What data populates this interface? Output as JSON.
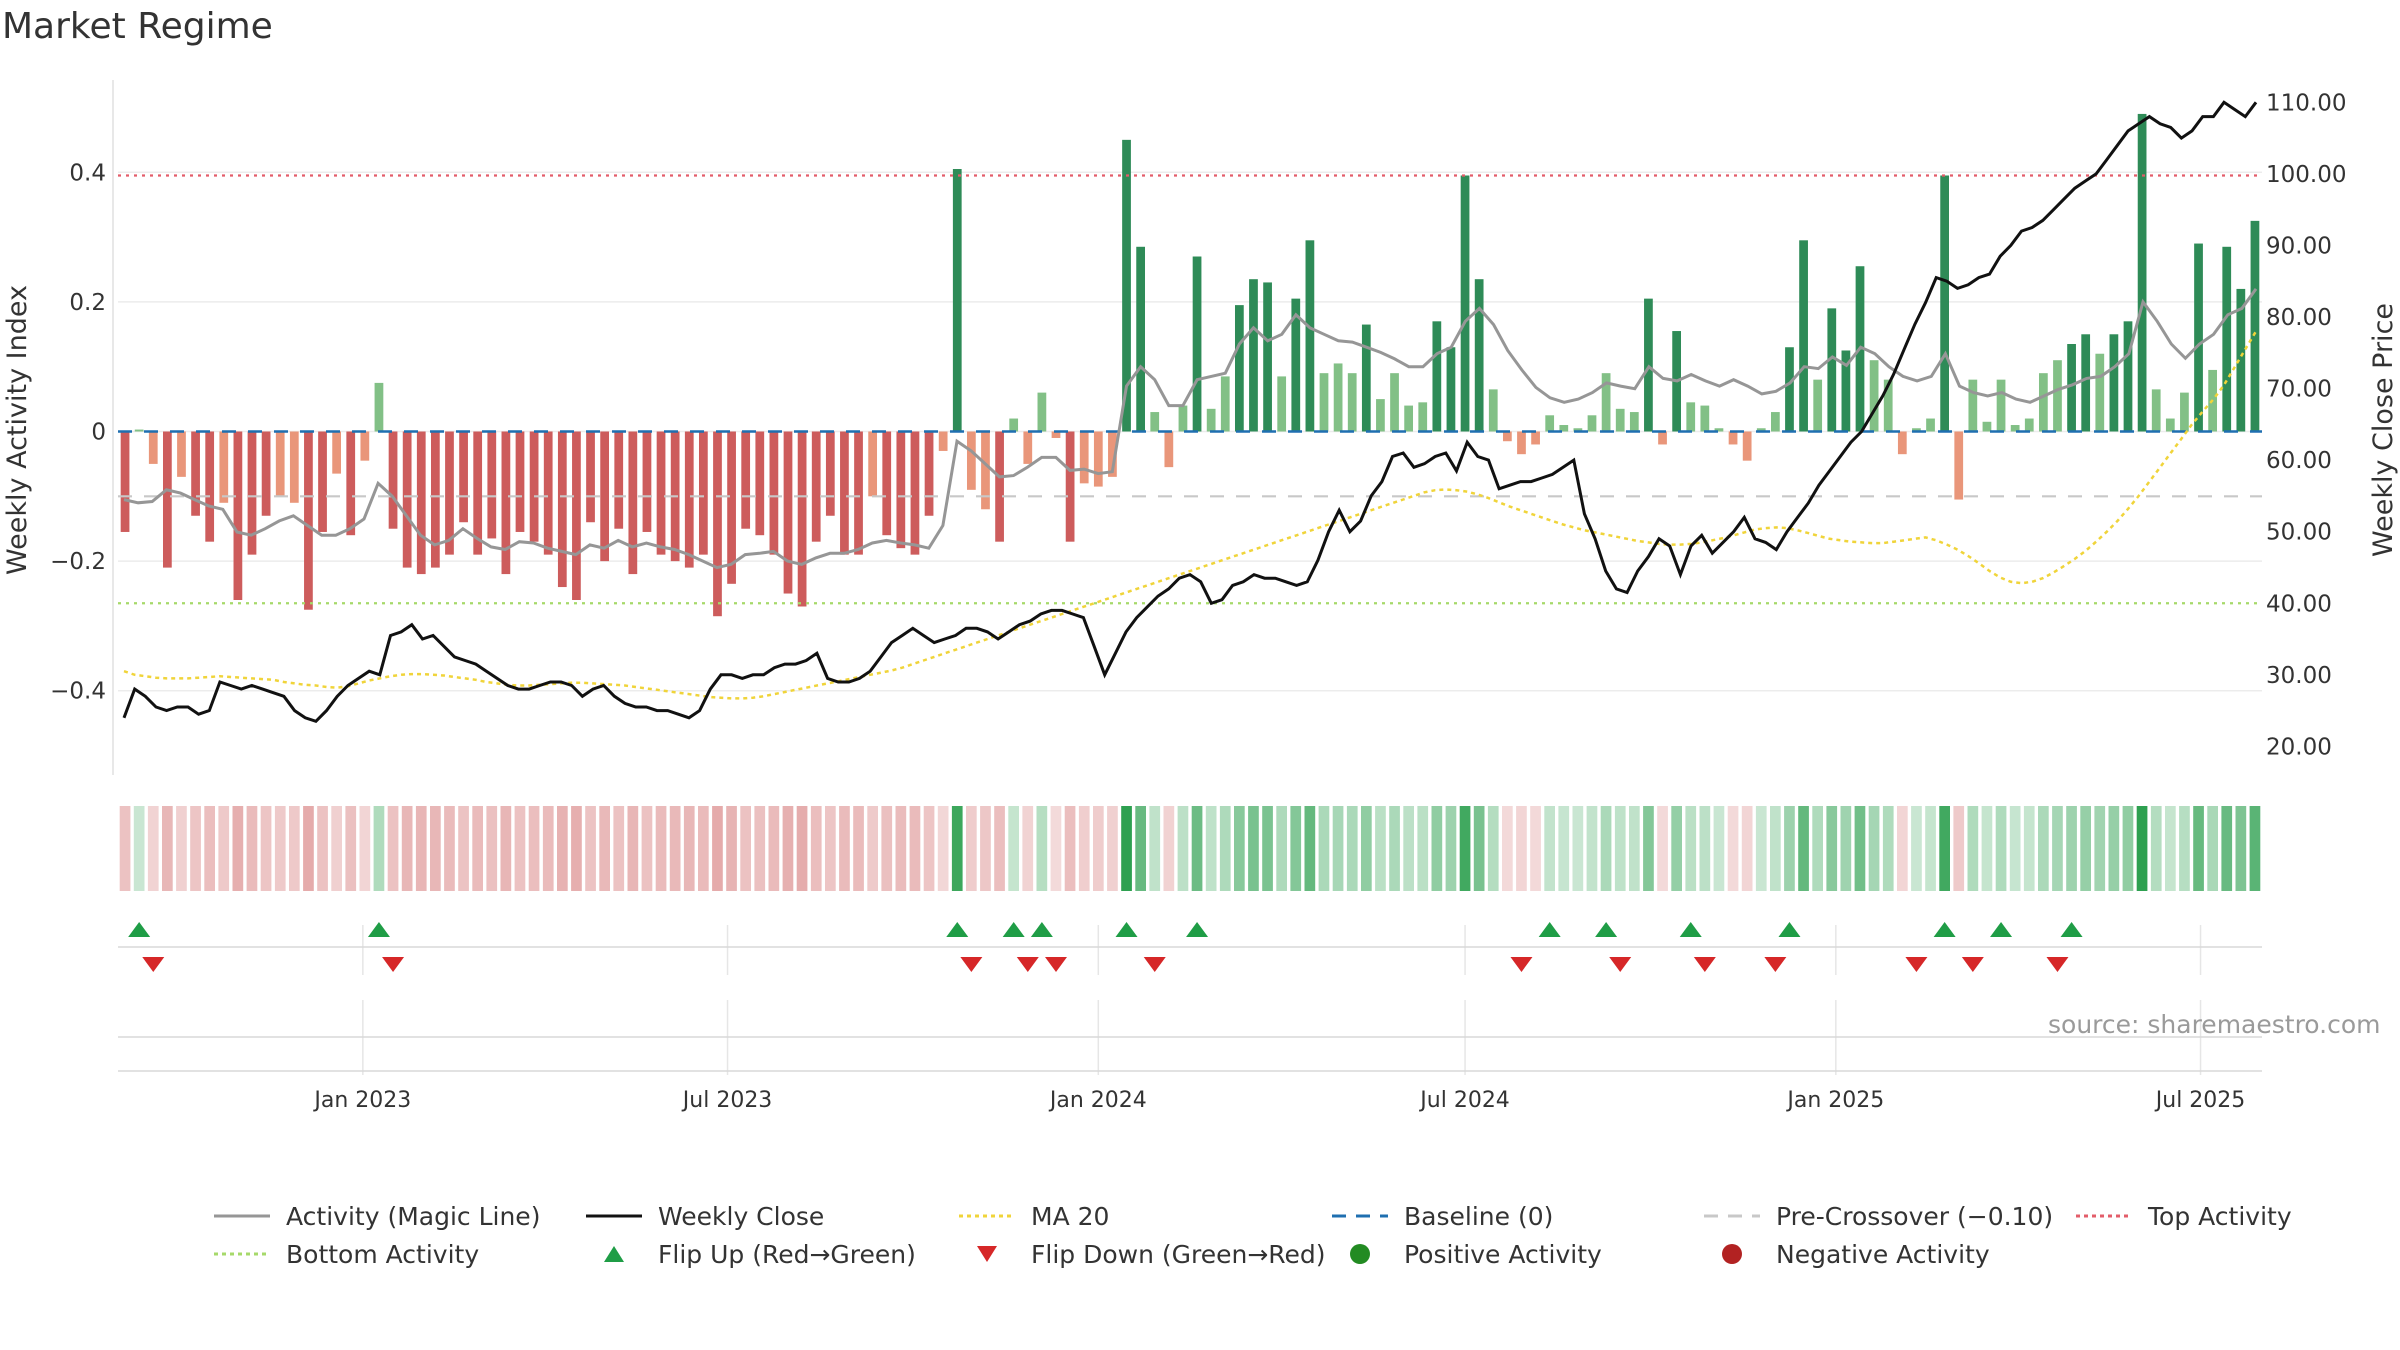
{
  "page": {
    "title": "Market Regime",
    "source": "source: sharemaestro.com"
  },
  "colors": {
    "pos_dark": "#2e8b57",
    "pos_light": "#82c086",
    "neg_dark": "#cd5c5c",
    "neg_light": "#e9967a",
    "close": "#111111",
    "activity": "#969696",
    "ma": "#f0d43a",
    "baseline": "#1f6fb0",
    "pre": "#c8c8c8",
    "top": "#e35d6a",
    "bottom": "#a6d96a",
    "flip_up": "#1f9d46",
    "flip_down": "#d62728"
  },
  "chart_data": {
    "type": "bar",
    "title": "Market Regime",
    "ylabel": "Weekly Activity Index",
    "y2label": "Weekly Close Price",
    "ylim": [
      -0.53,
      0.53
    ],
    "y2lim": [
      16.0,
      112.0
    ],
    "yticks": [
      {
        "v": 0.4,
        "label": "0.4"
      },
      {
        "v": 0.2,
        "label": "0.2"
      },
      {
        "v": 0,
        "label": "0"
      },
      {
        "v": -0.2,
        "label": "−0.2"
      },
      {
        "v": -0.4,
        "label": "−0.4"
      }
    ],
    "y2ticks": [
      "110.00",
      "100.00",
      "90.00",
      "80.00",
      "70.00",
      "60.00",
      "50.00",
      "40.00",
      "30.00",
      "20.00"
    ],
    "x_start": "2022-09-05",
    "xlabels": [
      "Jan 2023",
      "Jul 2023",
      "Jan 2024",
      "Jul 2024",
      "Jan 2025",
      "Jul 2025"
    ],
    "top_activity": 0.395,
    "bottom_activity": -0.265,
    "pre_crossover": -0.1,
    "baseline": 0,
    "grid": true,
    "legend_position": "bottom",
    "legend": [
      {
        "label": "Activity (Magic Line)",
        "symbol": "line",
        "color": "#969696"
      },
      {
        "label": "Weekly Close",
        "symbol": "line",
        "color": "#111111"
      },
      {
        "label": "MA 20",
        "symbol": "dotted",
        "color": "#f0d43a"
      },
      {
        "label": "Baseline (0)",
        "symbol": "dashed",
        "color": "#1f6fb0"
      },
      {
        "label": "Pre-Crossover (−0.10)",
        "symbol": "dashed",
        "color": "#c8c8c8"
      },
      {
        "label": "Top Activity",
        "symbol": "dotted",
        "color": "#e35d6a"
      },
      {
        "label": "Bottom Activity",
        "symbol": "dotted",
        "color": "#a6d96a"
      },
      {
        "label": "Flip Up (Red→Green)",
        "symbol": "triangle-up",
        "color": "#1f9d46"
      },
      {
        "label": "Flip Down (Green→Red)",
        "symbol": "triangle-down",
        "color": "#d62728"
      },
      {
        "label": "Positive Activity",
        "symbol": "circle",
        "color": "#228b22"
      },
      {
        "label": "Negative Activity",
        "symbol": "circle",
        "color": "#b22222"
      }
    ],
    "activity_bars": [
      -0.155,
      0.003,
      -0.05,
      -0.21,
      -0.07,
      -0.13,
      -0.17,
      -0.11,
      -0.26,
      -0.19,
      -0.13,
      -0.1,
      -0.11,
      -0.275,
      -0.155,
      -0.065,
      -0.16,
      -0.045,
      0.075,
      -0.15,
      -0.21,
      -0.22,
      -0.21,
      -0.19,
      -0.14,
      -0.19,
      -0.165,
      -0.22,
      -0.155,
      -0.17,
      -0.19,
      -0.24,
      -0.26,
      -0.14,
      -0.2,
      -0.15,
      -0.22,
      -0.155,
      -0.19,
      -0.2,
      -0.21,
      -0.19,
      -0.285,
      -0.235,
      -0.15,
      -0.16,
      -0.19,
      -0.25,
      -0.27,
      -0.17,
      -0.13,
      -0.19,
      -0.19,
      -0.1,
      -0.16,
      -0.18,
      -0.19,
      -0.13,
      -0.03,
      0.405,
      -0.09,
      -0.12,
      -0.17,
      0.02,
      -0.05,
      0.06,
      -0.01,
      -0.17,
      -0.08,
      -0.085,
      -0.07,
      0.45,
      0.285,
      0.03,
      -0.055,
      0.04,
      0.27,
      0.035,
      0.085,
      0.195,
      0.235,
      0.23,
      0.085,
      0.205,
      0.295,
      0.09,
      0.105,
      0.09,
      0.165,
      0.05,
      0.09,
      0.04,
      0.045,
      0.17,
      0.13,
      0.395,
      0.235,
      0.065,
      -0.015,
      -0.035,
      -0.02,
      0.025,
      0.01,
      0.005,
      0.025,
      0.09,
      0.035,
      0.03,
      0.205,
      -0.02,
      0.155,
      0.045,
      0.04,
      0.005,
      -0.02,
      -0.045,
      0.005,
      0.03,
      0.13,
      0.295,
      0.08,
      0.19,
      0.125,
      0.255,
      0.11,
      0.08,
      -0.035,
      0.005,
      0.02,
      0.395,
      -0.105,
      0.08,
      0.015,
      0.08,
      0.01,
      0.02,
      0.09,
      0.11,
      0.135,
      0.15,
      0.12,
      0.15,
      0.17,
      0.49,
      0.065,
      0.02,
      0.06,
      0.29,
      0.095,
      0.285,
      0.22,
      0.325
    ],
    "activity_line": [
      -0.105,
      -0.11,
      -0.108,
      -0.09,
      -0.095,
      -0.105,
      -0.115,
      -0.12,
      -0.155,
      -0.16,
      -0.15,
      -0.138,
      -0.13,
      -0.145,
      -0.16,
      -0.16,
      -0.15,
      -0.135,
      -0.08,
      -0.1,
      -0.13,
      -0.16,
      -0.175,
      -0.168,
      -0.15,
      -0.165,
      -0.178,
      -0.182,
      -0.17,
      -0.172,
      -0.18,
      -0.185,
      -0.19,
      -0.175,
      -0.18,
      -0.168,
      -0.178,
      -0.172,
      -0.178,
      -0.182,
      -0.19,
      -0.2,
      -0.21,
      -0.205,
      -0.19,
      -0.188,
      -0.185,
      -0.2,
      -0.205,
      -0.195,
      -0.188,
      -0.188,
      -0.182,
      -0.172,
      -0.168,
      -0.172,
      -0.175,
      -0.18,
      -0.145,
      -0.015,
      -0.03,
      -0.05,
      -0.07,
      -0.068,
      -0.055,
      -0.04,
      -0.04,
      -0.06,
      -0.058,
      -0.065,
      -0.062,
      0.07,
      0.1,
      0.08,
      0.04,
      0.04,
      0.08,
      0.085,
      0.09,
      0.135,
      0.16,
      0.14,
      0.15,
      0.18,
      0.16,
      0.15,
      0.14,
      0.138,
      0.13,
      0.122,
      0.112,
      0.1,
      0.1,
      0.12,
      0.13,
      0.17,
      0.19,
      0.165,
      0.125,
      0.095,
      0.068,
      0.052,
      0.045,
      0.05,
      0.06,
      0.075,
      0.07,
      0.066,
      0.1,
      0.082,
      0.078,
      0.088,
      0.078,
      0.07,
      0.08,
      0.07,
      0.058,
      0.062,
      0.075,
      0.1,
      0.097,
      0.115,
      0.102,
      0.13,
      0.12,
      0.1,
      0.085,
      0.078,
      0.085,
      0.12,
      0.07,
      0.06,
      0.055,
      0.06,
      0.05,
      0.045,
      0.055,
      0.065,
      0.072,
      0.082,
      0.085,
      0.1,
      0.12,
      0.2,
      0.17,
      0.135,
      0.113,
      0.135,
      0.15,
      0.18,
      0.19,
      0.22
    ],
    "weekly_close": [
      24.0,
      28.0,
      27.0,
      25.5,
      25.0,
      25.5,
      25.5,
      24.5,
      25.0,
      29.0,
      28.5,
      28.0,
      28.5,
      28.0,
      27.5,
      27.0,
      25.0,
      24.0,
      23.5,
      25.0,
      27.0,
      28.5,
      29.5,
      30.5,
      30.0,
      35.5,
      36.0,
      37.0,
      35.0,
      35.5,
      34.0,
      32.5,
      32.0,
      31.5,
      30.5,
      29.5,
      28.5,
      28.0,
      28.0,
      28.5,
      29.0,
      29.0,
      28.5,
      27.0,
      28.0,
      28.5,
      27.0,
      26.0,
      25.5,
      25.5,
      25.0,
      25.0,
      24.5,
      24.0,
      25.0,
      28.0,
      30.0,
      30.0,
      29.5,
      30.0,
      30.0,
      31.0,
      31.5,
      31.5,
      32.0,
      33.0,
      29.5,
      29.0,
      29.0,
      29.5,
      30.5,
      32.5,
      34.5,
      35.5,
      36.5,
      35.5,
      34.5,
      35.0,
      35.5,
      36.5,
      36.5,
      36.0,
      35.0,
      36.0,
      37.0,
      37.5,
      38.5,
      39.0,
      39.0,
      38.5,
      38.0,
      34.0,
      30.0,
      33.0,
      36.0,
      38.0,
      39.5,
      41.0,
      42.0,
      43.5,
      44.0,
      43.0,
      40.0,
      40.5,
      42.5,
      43.0,
      44.0,
      43.5,
      43.5,
      43.0,
      42.5,
      43.0,
      46.0,
      50.0,
      53.0,
      50.0,
      51.5,
      55.0,
      57.0,
      60.5,
      61.0,
      59.0,
      59.5,
      60.5,
      61.0,
      58.5,
      62.5,
      60.5,
      60.0,
      56.0,
      56.5,
      57.0,
      57.0,
      57.5,
      58.0,
      59.0,
      60.0,
      52.5,
      49.0,
      44.5,
      42.0,
      41.5,
      44.5,
      46.5,
      49.0,
      48.0,
      44.0,
      48.0,
      49.5,
      47.0,
      48.5,
      50.0,
      52.0,
      49.0,
      48.5,
      47.5,
      50.0,
      52.0,
      54.0,
      56.5,
      58.5,
      60.5,
      62.5,
      64.0,
      66.5,
      69.0,
      72.0,
      75.5,
      79.0,
      82.0,
      85.5,
      85.0,
      84.0,
      84.5,
      85.5,
      86.0,
      88.5,
      90.0,
      92.0,
      92.5,
      93.5,
      95.0,
      96.5,
      98.0,
      99.0,
      100.0,
      102.0,
      104.0,
      106.0,
      107.0,
      108.0,
      107.0,
      106.5,
      105.0,
      106.0,
      108.0,
      108.0,
      110.0,
      109.0,
      108.0,
      110.0
    ],
    "ma20": [
      30.5,
      30.0,
      29.8,
      29.6,
      29.5,
      29.5,
      29.5,
      29.6,
      29.7,
      29.8,
      29.7,
      29.6,
      29.5,
      29.4,
      29.3,
      29.0,
      28.8,
      28.6,
      28.5,
      28.3,
      28.2,
      28.4,
      28.8,
      29.2,
      29.5,
      29.8,
      30.0,
      30.1,
      30.1,
      30.0,
      29.9,
      29.7,
      29.5,
      29.3,
      29.0,
      28.8,
      28.6,
      28.5,
      28.5,
      28.6,
      28.7,
      28.8,
      28.9,
      28.9,
      28.8,
      28.7,
      28.6,
      28.5,
      28.3,
      28.1,
      27.9,
      27.7,
      27.5,
      27.3,
      27.1,
      26.9,
      26.8,
      26.7,
      26.7,
      26.8,
      27.0,
      27.3,
      27.6,
      27.9,
      28.2,
      28.5,
      28.8,
      29.1,
      29.4,
      29.7,
      30.0,
      30.3,
      30.6,
      31.0,
      31.5,
      32.0,
      32.5,
      33.0,
      33.5,
      34.0,
      34.5,
      35.0,
      35.5,
      36.0,
      36.5,
      37.0,
      37.5,
      38.0,
      38.5,
      39.0,
      39.5,
      40.0,
      40.5,
      41.0,
      41.5,
      42.0,
      42.5,
      43.0,
      43.5,
      44.0,
      44.5,
      45.0,
      45.5,
      46.0,
      46.5,
      47.0,
      47.5,
      48.0,
      48.5,
      49.0,
      49.5,
      50.0,
      50.5,
      51.0,
      51.5,
      52.0,
      52.5,
      53.0,
      53.5,
      54.0,
      54.5,
      55.0,
      55.5,
      55.8,
      55.9,
      55.8,
      55.6,
      55.2,
      54.7,
      54.1,
      53.5,
      53.0,
      52.5,
      52.0,
      51.5,
      51.0,
      50.6,
      50.2,
      49.9,
      49.6,
      49.3,
      49.0,
      48.7,
      48.5,
      48.3,
      48.2,
      48.2,
      48.3,
      48.5,
      48.8,
      49.1,
      49.5,
      49.9,
      50.3,
      50.5,
      50.6,
      50.5,
      50.2,
      49.8,
      49.4,
      49.0,
      48.8,
      48.6,
      48.5,
      48.4,
      48.4,
      48.6,
      48.8,
      49.0,
      49.2,
      48.8,
      48.2,
      47.5,
      46.6,
      45.6,
      44.5,
      43.6,
      43.0,
      42.8,
      43.0,
      43.5,
      44.3,
      45.2,
      46.2,
      47.3,
      48.6,
      50.0,
      51.5,
      53.2,
      55.0,
      57.0,
      59.0,
      61.0,
      63.0,
      65.0,
      66.8,
      68.5,
      70.5,
      73.0,
      75.5,
      78.0
    ],
    "flip_up_weeks": [
      1,
      18,
      59,
      63,
      65,
      71,
      76,
      101,
      105,
      111,
      118,
      129,
      133,
      138
    ],
    "flip_down_weeks": [
      2,
      19,
      60,
      64,
      66,
      73,
      99,
      106,
      112,
      117,
      127,
      131,
      137
    ]
  }
}
